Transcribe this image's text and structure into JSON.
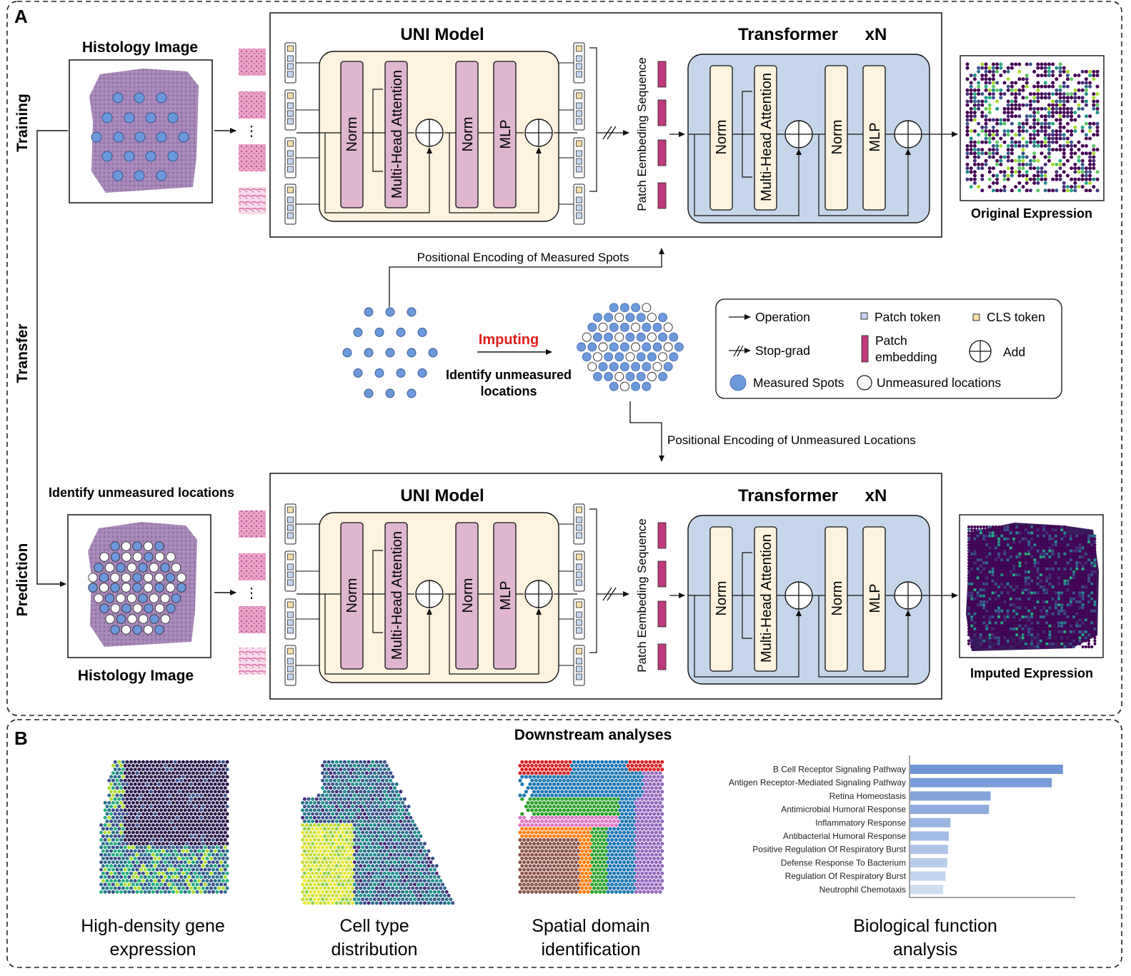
{
  "panel_a": {
    "label": "A",
    "stages": {
      "training": "Training",
      "transfer": "Transfer",
      "prediction": "Prediction"
    },
    "histology_top": "Histology Image",
    "histology_bottom": "Histology Image",
    "identify_label": "Identify unmeasured locations",
    "ellipsis": "⋮",
    "uni_title": "UNI Model",
    "transformer_title": "Transformer",
    "transformer_repeat": "xN",
    "blocks": {
      "norm": "Norm",
      "mha": "Multi-Head Attention",
      "mlp": "MLP"
    },
    "patch_seq": "Patch Eembeding Sequence",
    "original_expression": "Original Expression",
    "imputed_expression": "Imputed Expression",
    "pe_measured": "Positional Encoding of Measured Spots",
    "pe_unmeasured": "Positional Encoding of  Unmeasured Locations",
    "imputing": "Imputing",
    "identify_line1": "Identify unmeasured",
    "identify_line2": "locations",
    "legend": {
      "operation": "Operation",
      "patch_token": "Patch token",
      "cls_token": "CLS token",
      "stop_grad": "Stop-grad",
      "patch_embedding_1": "Patch",
      "patch_embedding_2": "embedding",
      "add": "Add",
      "measured": "Measured Spots",
      "unmeasured": "Unmeasured locations"
    }
  },
  "panel_b": {
    "label": "B",
    "title": "Downstream analyses",
    "captions": [
      [
        "High-density gene",
        "expression"
      ],
      [
        "Cell type",
        "distribution"
      ],
      [
        "Spatial domain",
        "identification"
      ],
      [
        "Biological function",
        "analysis"
      ]
    ]
  },
  "colors": {
    "uni_bg": "#fdf3df",
    "transformer_bg": "#c6d6ea",
    "norm_fill": "#dfb5d0",
    "patch_embed": "#c0397d",
    "spot_blue": "#6c98dc",
    "bar_dark": "#6e95d4",
    "bar_light": "#cfdcf0",
    "imputing_red": "#e0201b"
  },
  "chart_data": {
    "type": "bar",
    "orientation": "horizontal",
    "categories": [
      "B Cell Receptor Signaling Pathway",
      "Antigen Receptor-Mediated Signaling Pathway",
      "Retina Homeostasis",
      "Antimicrobial Humoral Response",
      "Inflammatory Response",
      "Antibacterial Humoral Response",
      "Positive Regulation Of Respiratory Burst",
      "Defense Response To Bacterium",
      "Regulation Of Respiratory Burst",
      "Neutrophil Chemotaxis"
    ],
    "values": [
      9.5,
      8.8,
      5.0,
      4.9,
      2.5,
      2.4,
      2.35,
      2.3,
      2.2,
      2.05
    ],
    "xlim": [
      0,
      10
    ],
    "grid": false,
    "legend": "none"
  }
}
